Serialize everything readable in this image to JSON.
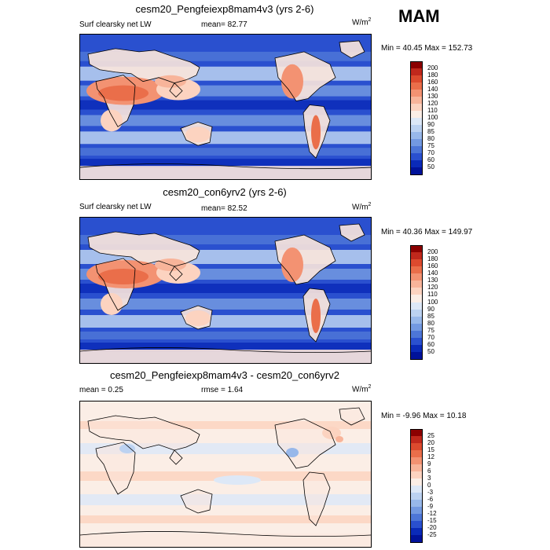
{
  "season": "MAM",
  "chart_data": [
    {
      "type": "heatmap",
      "title": "cesm20_Pengfeiexp8mam4v3 (yrs 2-6)",
      "left_label": "Surf clearsky net LW",
      "center_label": "mean=  82.77",
      "units": "W/m",
      "units_sup": "2",
      "minmax": "Min =  40.45 Max = 152.73",
      "colorbar_levels": [
        "200",
        "180",
        "160",
        "140",
        "130",
        "120",
        "110",
        "100",
        "90",
        "85",
        "80",
        "75",
        "70",
        "60",
        "50"
      ],
      "colorbar_colors": [
        "#8b0000",
        "#c0281c",
        "#dc4a2e",
        "#ea6e4a",
        "#f39272",
        "#f8b49a",
        "#fcd3c0",
        "#fbeee6",
        "#dde8f7",
        "#bcd2f1",
        "#98b8ea",
        "#7399e1",
        "#4d76d7",
        "#2a50cf",
        "#0a2ab8",
        "#00129a"
      ],
      "mean": 82.77,
      "min": 40.45,
      "max": 152.73
    },
    {
      "type": "heatmap",
      "title": "cesm20_con6yrv2 (yrs 2-6)",
      "left_label": "Surf clearsky net LW",
      "center_label": "mean=  82.52",
      "units": "W/m",
      "units_sup": "2",
      "minmax": "Min =  40.36 Max = 149.97",
      "colorbar_levels": [
        "200",
        "180",
        "160",
        "140",
        "130",
        "120",
        "110",
        "100",
        "90",
        "85",
        "80",
        "75",
        "70",
        "60",
        "50"
      ],
      "colorbar_colors": [
        "#8b0000",
        "#c0281c",
        "#dc4a2e",
        "#ea6e4a",
        "#f39272",
        "#f8b49a",
        "#fcd3c0",
        "#fbeee6",
        "#dde8f7",
        "#bcd2f1",
        "#98b8ea",
        "#7399e1",
        "#4d76d7",
        "#2a50cf",
        "#0a2ab8",
        "#00129a"
      ],
      "mean": 82.52,
      "min": 40.36,
      "max": 149.97
    },
    {
      "type": "heatmap",
      "title": "cesm20_Pengfeiexp8mam4v3 - cesm20_con6yrv2",
      "left_label": "mean =   0.25",
      "center_label": "rmse =   1.64",
      "units": "W/m",
      "units_sup": "2",
      "minmax": "Min =  -9.96 Max =  10.18",
      "colorbar_levels": [
        "25",
        "20",
        "15",
        "12",
        "9",
        "6",
        "3",
        "0",
        "-3",
        "-6",
        "-9",
        "-12",
        "-15",
        "-20",
        "-25"
      ],
      "colorbar_colors": [
        "#8b0000",
        "#c0281c",
        "#dc4a2e",
        "#ea6e4a",
        "#f39272",
        "#f8b49a",
        "#fcd3c0",
        "#fbeee6",
        "#dde8f7",
        "#bcd2f1",
        "#98b8ea",
        "#7399e1",
        "#4d76d7",
        "#2a50cf",
        "#0a2ab8",
        "#00129a"
      ],
      "mean": 0.25,
      "rmse": 1.64,
      "min": -9.96,
      "max": 10.18
    }
  ]
}
